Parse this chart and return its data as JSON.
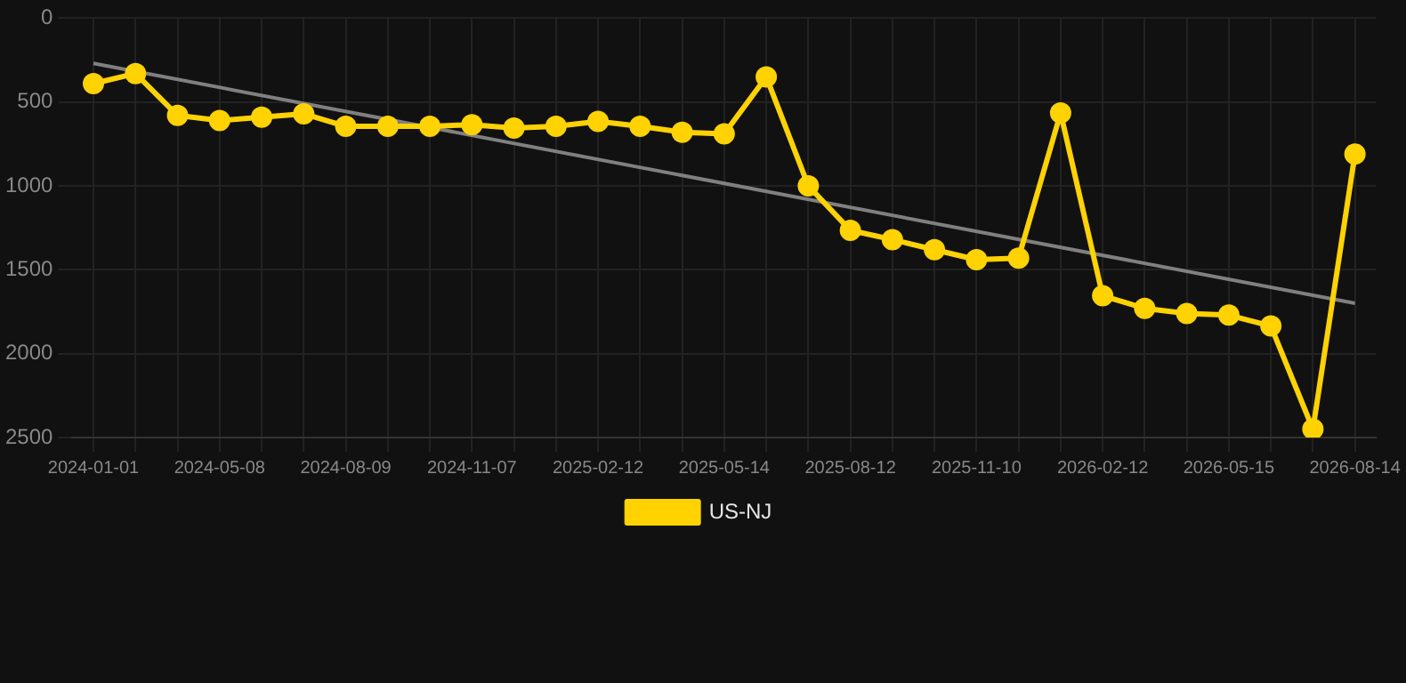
{
  "chart_data": {
    "type": "line",
    "categories": [
      "2024-01-01",
      null,
      null,
      "2024-05-08",
      null,
      null,
      "2024-08-09",
      null,
      null,
      "2024-11-07",
      null,
      null,
      "2025-02-12",
      null,
      null,
      "2025-05-14",
      null,
      null,
      "2025-08-12",
      null,
      null,
      "2025-11-10",
      null,
      null,
      "2026-02-12",
      null,
      null,
      "2026-05-15",
      null,
      null,
      "2026-08-14"
    ],
    "series": [
      {
        "name": "US-NJ",
        "color": "#ffd200",
        "marker": "circle",
        "values": [
          390,
          330,
          580,
          610,
          590,
          570,
          645,
          645,
          645,
          635,
          655,
          645,
          615,
          645,
          680,
          690,
          350,
          1000,
          1265,
          1320,
          1380,
          1440,
          1430,
          565,
          1655,
          1730,
          1760,
          1770,
          1835,
          2450,
          810
        ]
      },
      {
        "color": "#808080",
        "marker": "none",
        "values": [
          270,
          null,
          null,
          null,
          null,
          null,
          null,
          null,
          null,
          null,
          null,
          null,
          null,
          null,
          null,
          null,
          null,
          null,
          null,
          null,
          null,
          null,
          null,
          null,
          null,
          null,
          null,
          null,
          null,
          null,
          1700
        ]
      }
    ],
    "ylim": [
      2500,
      0
    ],
    "yticks": [
      0,
      500,
      1000,
      1500,
      2000,
      2500
    ],
    "grid": true,
    "legend": "bottom"
  }
}
